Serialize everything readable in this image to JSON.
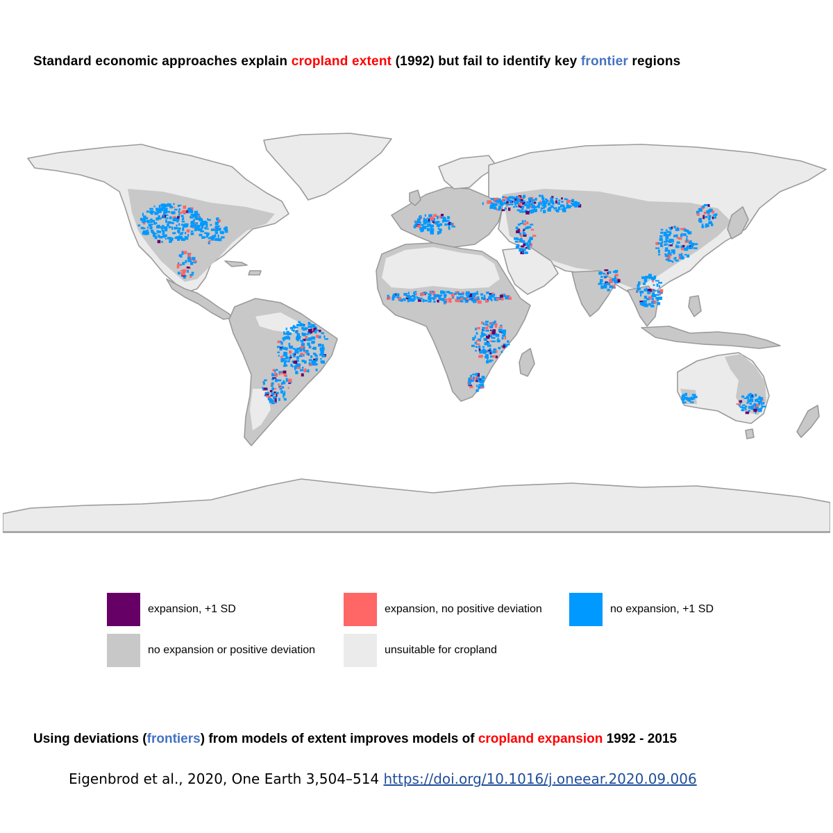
{
  "header": {
    "part1": "Standard economic approaches explain ",
    "highlight1": "cropland extent",
    "part2": " (1992) but fail to identify  key ",
    "highlight2": "frontier",
    "part3": " regions"
  },
  "legend": {
    "items": [
      {
        "label": "expansion, +1 SD",
        "color": "#660066"
      },
      {
        "label": "expansion, no positive deviation",
        "color": "#ff6666"
      },
      {
        "label": "no expansion, +1 SD",
        "color": "#0099ff"
      },
      {
        "label": "no expansion or positive deviation",
        "color": "#c8c8c8"
      },
      {
        "label": "unsuitable for cropland",
        "color": "#ebebeb"
      }
    ]
  },
  "footer": {
    "part1": "Using deviations (",
    "highlight1": "frontiers",
    "part2": ") from models of extent improves models of ",
    "highlight2": "cropland expansion",
    "part3": " 1992 - 2015"
  },
  "citation": {
    "text": "Eigenbrod et al., 2020, One Earth 3,504–514 ",
    "link": "https://doi.org/10.1016/j.oneear.2020.09.006"
  },
  "map": {
    "colors": {
      "border": "#9a9a9a",
      "unsuitable": "#ebebeb",
      "suitable": "#c8c8c8",
      "noexp": "#0099ff",
      "exp_nodev": "#ff6666",
      "exp_sd": "#660066"
    }
  }
}
